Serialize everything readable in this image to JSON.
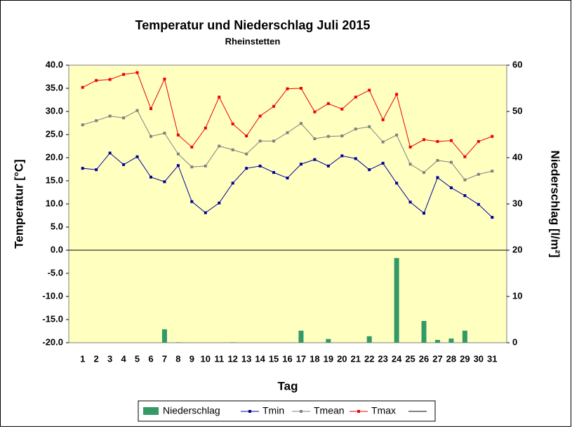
{
  "chart_data": {
    "type": "bar_line",
    "title": "Temperatur und Niederschlag Juli 2015",
    "subtitle": "Rheinstetten",
    "x_label": "Tag",
    "y_label": "Temperatur [°C]",
    "y2_label": "Niederschlag [l/m²]",
    "categories": [
      "1",
      "2",
      "3",
      "4",
      "5",
      "6",
      "7",
      "8",
      "9",
      "10",
      "11",
      "12",
      "13",
      "14",
      "15",
      "16",
      "17",
      "18",
      "19",
      "20",
      "21",
      "22",
      "23",
      "24",
      "25",
      "26",
      "27",
      "28",
      "29",
      "30",
      "31"
    ],
    "ylim": [
      -20,
      40
    ],
    "yticks": [
      {
        "value": 40,
        "label": "40.0"
      },
      {
        "value": 35,
        "label": "35.0"
      },
      {
        "value": 30,
        "label": "30.0"
      },
      {
        "value": 25,
        "label": "25.0"
      },
      {
        "value": 20,
        "label": "20.0"
      },
      {
        "value": 15,
        "label": "15.0"
      },
      {
        "value": 10,
        "label": "10.0"
      },
      {
        "value": 5,
        "label": "5.0"
      },
      {
        "value": 0,
        "label": "0.0"
      },
      {
        "value": -5,
        "label": "-5.0"
      },
      {
        "value": -10,
        "label": "-10.0"
      },
      {
        "value": -15,
        "label": "-15.0"
      },
      {
        "value": -20,
        "label": "-20.0"
      }
    ],
    "y2lim": [
      0,
      60
    ],
    "y2ticks": [
      0,
      10,
      20,
      30,
      40,
      50,
      60
    ],
    "grid": true,
    "legend": "bottom",
    "series": [
      {
        "name": "Niederschlag",
        "type": "bar",
        "axis": "y2",
        "color": "#339966",
        "values": [
          0,
          0,
          0,
          0,
          0,
          0,
          2.9,
          0.1,
          0,
          0,
          0,
          0.1,
          0,
          0,
          0,
          0,
          2.6,
          0,
          0.8,
          0,
          0,
          1.4,
          0,
          18.3,
          0,
          4.7,
          0.6,
          0.9,
          2.6,
          0,
          0
        ]
      },
      {
        "name": "Tmin",
        "type": "line",
        "color": "#000099",
        "values": [
          17.7,
          17.4,
          21.0,
          18.5,
          20.2,
          15.8,
          14.8,
          18.3,
          10.5,
          8.1,
          10.2,
          14.5,
          17.7,
          18.2,
          16.8,
          15.6,
          18.6,
          19.6,
          18.2,
          20.4,
          19.8,
          17.4,
          18.8,
          14.5,
          10.4,
          8.0,
          15.7,
          13.5,
          11.8,
          9.9,
          7.1
        ]
      },
      {
        "name": "Tmean",
        "type": "line",
        "color": "#808080",
        "values": [
          27.1,
          28.0,
          29.0,
          28.6,
          30.2,
          24.6,
          25.3,
          20.8,
          18.0,
          18.2,
          22.5,
          21.7,
          20.8,
          23.6,
          23.6,
          25.4,
          27.4,
          24.1,
          24.6,
          24.7,
          26.2,
          26.7,
          23.4,
          24.9,
          18.6,
          16.8,
          19.4,
          19.0,
          15.2,
          16.4,
          17.1
        ]
      },
      {
        "name": "Tmax",
        "type": "line",
        "color": "#ee0000",
        "values": [
          35.2,
          36.7,
          36.9,
          38.0,
          38.4,
          30.6,
          37.0,
          24.9,
          22.3,
          26.4,
          33.1,
          27.3,
          24.7,
          29.0,
          31.1,
          34.9,
          35.0,
          29.9,
          31.7,
          30.5,
          33.1,
          34.6,
          28.2,
          33.7,
          22.3,
          23.9,
          23.5,
          23.7,
          20.2,
          23.5,
          24.6
        ]
      }
    ]
  }
}
